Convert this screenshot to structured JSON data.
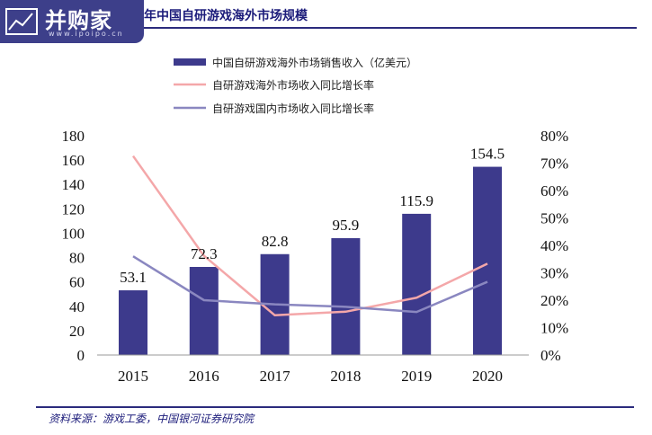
{
  "header": {
    "logo_text": "并购家",
    "logo_url": "www.ipoipo.cn",
    "title": "年中国自研游戏海外市场规模"
  },
  "footer": {
    "source": "资料来源：游戏工委，中国银河证券研究院"
  },
  "colors": {
    "bar": "#3d3a8c",
    "overseas_growth": "#f4a7a9",
    "domestic_growth": "#8a87c0",
    "title": "#1b1b7a"
  },
  "chart_data": {
    "type": "bar",
    "categories": [
      "2015",
      "2016",
      "2017",
      "2018",
      "2019",
      "2020"
    ],
    "series": [
      {
        "name": "中国自研游戏海外市场销售收入（亿美元）",
        "type": "bar",
        "axis": "left",
        "values": [
          53.1,
          72.3,
          82.8,
          95.9,
          115.9,
          154.5
        ]
      },
      {
        "name": "自研游戏海外市场收入同比增长率",
        "type": "line",
        "axis": "right",
        "values": [
          72.6,
          36.2,
          14.5,
          15.8,
          20.9,
          33.3
        ]
      },
      {
        "name": "自研游戏国内市场收入同比增长率",
        "type": "line",
        "axis": "right",
        "values": [
          36.0,
          20.0,
          18.5,
          17.6,
          15.7,
          26.7
        ]
      }
    ],
    "left_axis": {
      "ticks": [
        "0",
        "20",
        "40",
        "60",
        "80",
        "100",
        "120",
        "140",
        "160",
        "180"
      ],
      "range": [
        0,
        180
      ]
    },
    "right_axis": {
      "ticks": [
        "0%",
        "10%",
        "20%",
        "30%",
        "40%",
        "50%",
        "60%",
        "70%",
        "80%"
      ],
      "range": [
        0,
        80
      ]
    },
    "data_labels": [
      "53.1",
      "72.3",
      "82.8",
      "95.9",
      "115.9",
      "154.5"
    ],
    "legend_position": "top"
  }
}
